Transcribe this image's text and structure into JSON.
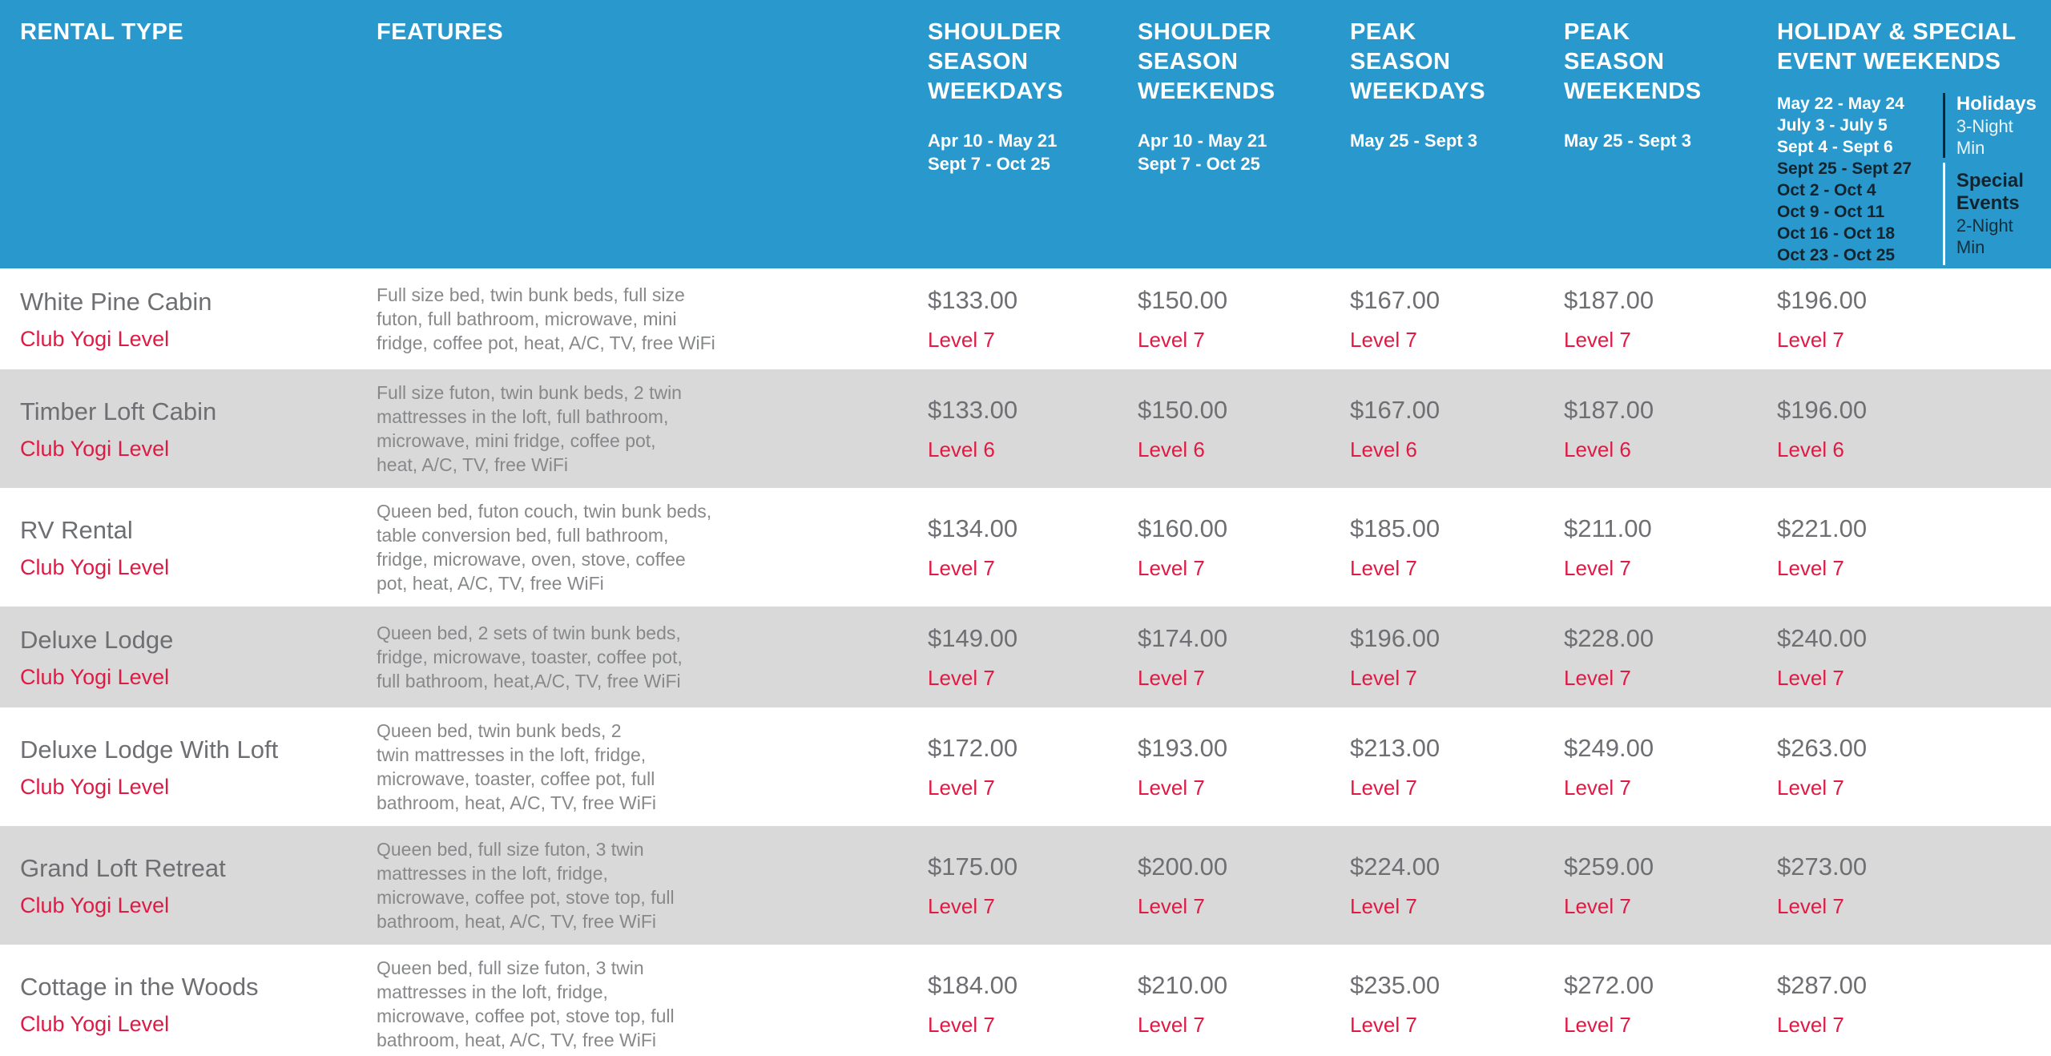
{
  "colors": {
    "header_bg": "#2999CD",
    "accent_red": "#E01A44",
    "row_alt": "#D9D9D9",
    "text_gray": "#6E6F72",
    "features_gray": "#87888A",
    "dark_text": "#12242E"
  },
  "header": {
    "rental_type": "RENTAL TYPE",
    "features": "FEATURES",
    "price_columns": [
      {
        "title": "SHOULDER SEASON WEEKDAYS",
        "dates": "Apr 10 - May 21\nSept 7 - Oct 25"
      },
      {
        "title": "SHOULDER SEASON WEEKENDS",
        "dates": "Apr 10 - May 21\nSept 7 - Oct 25"
      },
      {
        "title": "PEAK SEASON WEEKDAYS",
        "dates": "May 25 - Sept 3"
      },
      {
        "title": "PEAK SEASON WEEKENDS",
        "dates": "May 25 - Sept 3"
      }
    ],
    "holiday": {
      "title": "HOLIDAY & SPECIAL EVENT WEEKENDS",
      "holiday_dates": "May 22 - May 24\nJuly 3 - July 5\nSept 4 - Sept 6",
      "special_dates": "Sept 25 - Sept 27\nOct 2 - Oct 4\nOct 9 - Oct 11\nOct 16 - Oct 18\nOct 23 - Oct 25",
      "holidays_label": "Holidays",
      "holidays_min": "3-Night Min",
      "special_label": "Special\nEvents",
      "special_min": "2-Night Min"
    }
  },
  "rows": [
    {
      "name": "White Pine Cabin",
      "level_label": "Club Yogi Level",
      "features": "Full size bed, twin bunk beds, full size\nfuton, full bathroom, microwave, mini\nfridge, coffee pot, heat, A/C, TV, free WiFi",
      "prices": [
        {
          "amount": "$133.00",
          "level": "Level 7"
        },
        {
          "amount": "$150.00",
          "level": "Level 7"
        },
        {
          "amount": "$167.00",
          "level": "Level 7"
        },
        {
          "amount": "$187.00",
          "level": "Level 7"
        },
        {
          "amount": "$196.00",
          "level": "Level 7"
        }
      ]
    },
    {
      "name": "Timber Loft Cabin",
      "level_label": "Club Yogi Level",
      "features": "Full size futon, twin bunk beds, 2 twin\nmattresses in the loft, full bathroom,\nmicrowave, mini fridge, coffee pot,\nheat, A/C, TV, free WiFi",
      "prices": [
        {
          "amount": "$133.00",
          "level": "Level 6"
        },
        {
          "amount": "$150.00",
          "level": "Level 6"
        },
        {
          "amount": "$167.00",
          "level": "Level 6"
        },
        {
          "amount": "$187.00",
          "level": "Level 6"
        },
        {
          "amount": "$196.00",
          "level": "Level 6"
        }
      ]
    },
    {
      "name": "RV Rental",
      "level_label": "Club Yogi Level",
      "features": "Queen bed, futon couch, twin bunk beds,\ntable conversion bed, full bathroom,\nfridge, microwave, oven, stove, coffee\npot, heat, A/C, TV, free WiFi",
      "prices": [
        {
          "amount": "$134.00",
          "level": "Level 7"
        },
        {
          "amount": "$160.00",
          "level": "Level 7"
        },
        {
          "amount": "$185.00",
          "level": "Level 7"
        },
        {
          "amount": "$211.00",
          "level": "Level 7"
        },
        {
          "amount": "$221.00",
          "level": "Level 7"
        }
      ]
    },
    {
      "name": "Deluxe Lodge",
      "level_label": "Club Yogi Level",
      "features": "Queen bed, 2 sets of twin bunk beds,\nfridge, microwave, toaster, coffee pot,\nfull bathroom, heat,A/C, TV, free WiFi",
      "prices": [
        {
          "amount": "$149.00",
          "level": "Level 7"
        },
        {
          "amount": "$174.00",
          "level": "Level 7"
        },
        {
          "amount": "$196.00",
          "level": "Level 7"
        },
        {
          "amount": "$228.00",
          "level": "Level 7"
        },
        {
          "amount": "$240.00",
          "level": "Level 7"
        }
      ]
    },
    {
      "name": "Deluxe Lodge With Loft",
      "level_label": "Club Yogi Level",
      "features": "Queen bed, twin bunk beds, 2\ntwin mattresses in the loft, fridge,\nmicrowave, toaster, coffee pot, full\nbathroom, heat, A/C, TV, free WiFi",
      "prices": [
        {
          "amount": "$172.00",
          "level": "Level 7"
        },
        {
          "amount": "$193.00",
          "level": "Level 7"
        },
        {
          "amount": "$213.00",
          "level": "Level 7"
        },
        {
          "amount": "$249.00",
          "level": "Level 7"
        },
        {
          "amount": "$263.00",
          "level": "Level 7"
        }
      ]
    },
    {
      "name": "Grand Loft Retreat",
      "level_label": "Club Yogi Level",
      "features": "Queen bed, full size futon, 3 twin\nmattresses in the loft, fridge,\nmicrowave, coffee pot, stove top, full\nbathroom, heat, A/C, TV, free WiFi",
      "prices": [
        {
          "amount": "$175.00",
          "level": "Level 7"
        },
        {
          "amount": "$200.00",
          "level": "Level 7"
        },
        {
          "amount": "$224.00",
          "level": "Level 7"
        },
        {
          "amount": "$259.00",
          "level": "Level 7"
        },
        {
          "amount": "$273.00",
          "level": "Level 7"
        }
      ]
    },
    {
      "name": "Cottage in the Woods",
      "level_label": "Club Yogi Level",
      "features": "Queen bed, full size futon, 3 twin\nmattresses in the loft, fridge,\nmicrowave, coffee pot, stove top, full\nbathroom, heat, A/C, TV, free WiFi",
      "prices": [
        {
          "amount": "$184.00",
          "level": "Level 7"
        },
        {
          "amount": "$210.00",
          "level": "Level 7"
        },
        {
          "amount": "$235.00",
          "level": "Level 7"
        },
        {
          "amount": "$272.00",
          "level": "Level 7"
        },
        {
          "amount": "$287.00",
          "level": "Level 7"
        }
      ]
    }
  ]
}
